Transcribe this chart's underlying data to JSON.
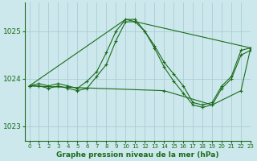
{
  "title": "Graphe pression niveau de la mer (hPa)",
  "bg_color": "#cce8ec",
  "grid_color": "#aacdd4",
  "line_color": "#1a6b1a",
  "xlim": [
    -0.5,
    23
  ],
  "ylim": [
    1022.7,
    1025.6
  ],
  "yticks": [
    1023,
    1024,
    1025
  ],
  "xticks": [
    0,
    1,
    2,
    3,
    4,
    5,
    6,
    7,
    8,
    9,
    10,
    11,
    12,
    13,
    14,
    15,
    16,
    17,
    18,
    19,
    20,
    21,
    22,
    23
  ],
  "series": [
    {
      "x": [
        0,
        1,
        2,
        3,
        4,
        5,
        6,
        7,
        8,
        9,
        10,
        11,
        12,
        13,
        14,
        15,
        16,
        17,
        18,
        19,
        20,
        21,
        22,
        23
      ],
      "y": [
        1023.85,
        1023.9,
        1023.85,
        1023.9,
        1023.85,
        1023.8,
        1023.95,
        1024.15,
        1024.55,
        1025.0,
        1025.25,
        1025.25,
        1025.0,
        1024.7,
        1024.35,
        1024.1,
        1023.85,
        1023.5,
        1023.45,
        1023.5,
        1023.85,
        1024.05,
        1024.6,
        1024.65
      ]
    },
    {
      "x": [
        0,
        1,
        2,
        3,
        4,
        5,
        6,
        7,
        8,
        9,
        10,
        11,
        12,
        13,
        14,
        15,
        16,
        17,
        18,
        19,
        20,
        21,
        22,
        23
      ],
      "y": [
        1023.85,
        1023.85,
        1023.8,
        1023.85,
        1023.8,
        1023.75,
        1023.8,
        1024.05,
        1024.3,
        1024.8,
        1025.2,
        1025.2,
        1025.0,
        1024.65,
        1024.25,
        1023.95,
        1023.7,
        1023.45,
        1023.4,
        1023.45,
        1023.8,
        1024.0,
        1024.5,
        1024.6
      ]
    },
    {
      "x": [
        0,
        10,
        23
      ],
      "y": [
        1023.85,
        1025.25,
        1024.65
      ]
    },
    {
      "x": [
        0,
        14,
        19,
        22,
        23
      ],
      "y": [
        1023.85,
        1023.75,
        1023.45,
        1023.75,
        1024.65
      ]
    }
  ]
}
